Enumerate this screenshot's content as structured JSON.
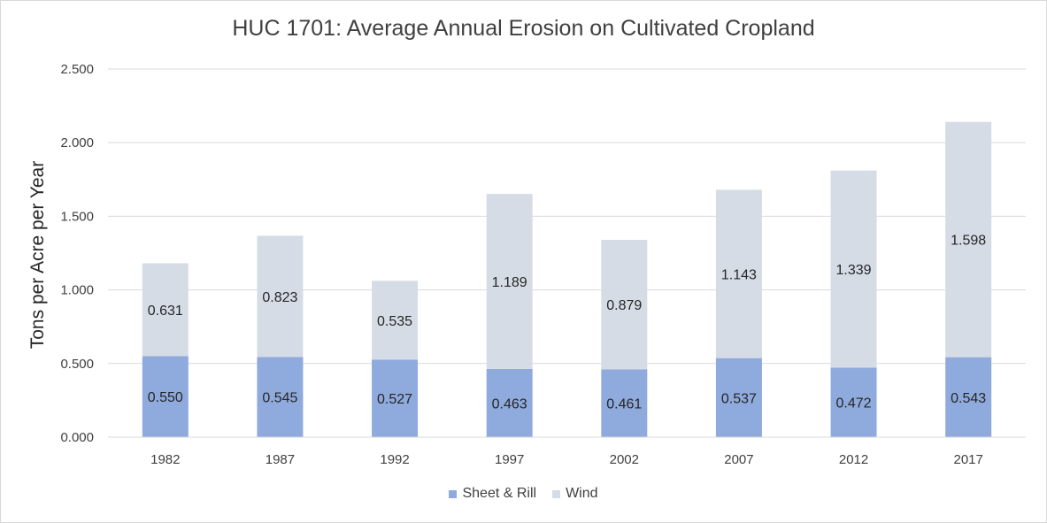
{
  "chart_data": {
    "type": "bar",
    "stacked": true,
    "title": "HUC 1701: Average Annual Erosion on Cultivated Cropland",
    "xlabel": "",
    "ylabel": "Tons per Acre per Year",
    "categories": [
      "1982",
      "1987",
      "1992",
      "1997",
      "2002",
      "2007",
      "2012",
      "2017"
    ],
    "series": [
      {
        "name": "Sheet & Rill",
        "color": "#8faadc",
        "values": [
          0.55,
          0.545,
          0.527,
          0.463,
          0.461,
          0.537,
          0.472,
          0.543
        ]
      },
      {
        "name": "Wind",
        "color": "#d6dce5",
        "values": [
          0.631,
          0.823,
          0.535,
          1.189,
          0.879,
          1.143,
          1.339,
          1.598
        ]
      }
    ],
    "data_labels": [
      [
        "0.550",
        "0.545",
        "0.527",
        "0.463",
        "0.461",
        "0.537",
        "0.472",
        "0.543"
      ],
      [
        "0.631",
        "0.823",
        "0.535",
        "1.189",
        "0.879",
        "1.143",
        "1.339",
        "1.598"
      ]
    ],
    "ylim": [
      0,
      2.5
    ],
    "yticks": [
      0,
      0.5,
      1.0,
      1.5,
      2.0,
      2.5
    ],
    "ytick_labels": [
      "0.000",
      "0.500",
      "1.000",
      "1.500",
      "2.000",
      "2.500"
    ],
    "grid": true,
    "legend_position": "bottom"
  }
}
